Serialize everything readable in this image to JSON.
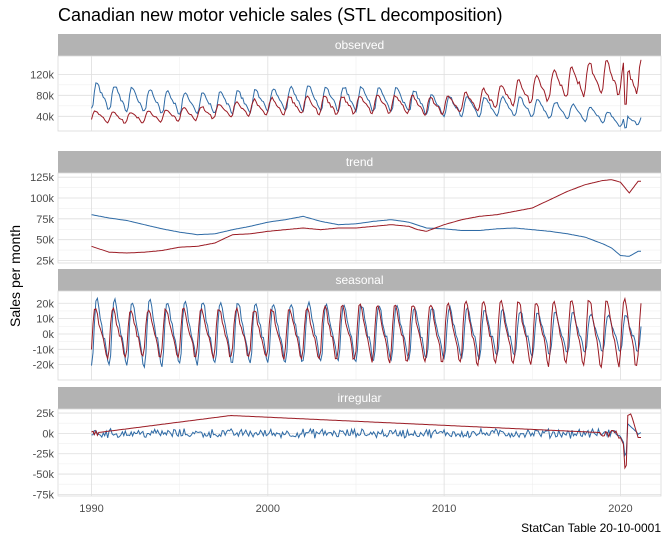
{
  "chart_data": {
    "type": "line",
    "title": "Canadian new motor vehicle sales (STL decomposition)",
    "xlabel": "",
    "ylabel": "Sales per month",
    "caption": "StatCan Table 20-10-0001",
    "x_range": [
      1990,
      2021.2
    ],
    "x_ticks": [
      "1990",
      "2000",
      "2010",
      "2020"
    ],
    "grid": true,
    "colors": {
      "series_a": "#2e6aa5",
      "series_b": "#9b1b24"
    },
    "panels": [
      {
        "name": "observed",
        "ylim": [
          12000,
          155000
        ],
        "y_ticks": [
          40000,
          80000,
          120000
        ],
        "y_tick_labels": [
          "40k",
          "80k",
          "120k"
        ],
        "series": [
          {
            "x": [
              1990,
              1992,
              1994,
              1996,
              1998,
              2000,
              2002,
              2004,
              2006,
              2008,
              2009,
              2010,
              2012,
              2014,
              2016,
              2018,
              2019,
              2020,
              2021
            ],
            "values": [
              78000,
              72000,
              67000,
              64000,
              66000,
              70000,
              74000,
              73000,
              72000,
              70000,
              62000,
              58000,
              58000,
              58000,
              52000,
              45000,
              40000,
              30000,
              35000
            ]
          },
          {
            "x": [
              1990,
              1992,
              1994,
              1996,
              1998,
              2000,
              2002,
              2004,
              2006,
              2008,
              2009,
              2010,
              2012,
              2014,
              2016,
              2018,
              2019,
              2020,
              2021
            ],
            "values": [
              40000,
              37000,
              40000,
              45000,
              52000,
              58000,
              61000,
              60000,
              63000,
              62000,
              58000,
              60000,
              70000,
              82000,
              96000,
              110000,
              115000,
              110000,
              120000
            ]
          }
        ]
      },
      {
        "name": "trend",
        "ylim": [
          22000,
          130000
        ],
        "y_ticks": [
          25000,
          50000,
          75000,
          100000,
          125000
        ],
        "y_tick_labels": [
          "25k",
          "50k",
          "75k",
          "100k",
          "125k"
        ],
        "series": [
          {
            "x": [
              1990,
              1991,
              1992,
              1993,
              1994,
              1995,
              1996,
              1997,
              1998,
              1999,
              2000,
              2001,
              2002,
              2003,
              2004,
              2005,
              2006,
              2007,
              2008,
              2009,
              2010,
              2011,
              2012,
              2013,
              2014,
              2015,
              2016,
              2017,
              2018,
              2019,
              2019.5,
              2020,
              2020.5,
              2021
            ],
            "values": [
              80000,
              76000,
              73000,
              68000,
              63000,
              59000,
              56000,
              57000,
              62000,
              66000,
              71000,
              74000,
              78000,
              72000,
              68000,
              69000,
              72000,
              74000,
              71000,
              64000,
              63000,
              61000,
              61000,
              63000,
              64000,
              62000,
              60000,
              57000,
              53000,
              45000,
              40000,
              31000,
              30000,
              36000
            ]
          },
          {
            "x": [
              1990,
              1991,
              1992,
              1993,
              1994,
              1995,
              1996,
              1997,
              1998,
              1999,
              2000,
              2001,
              2002,
              2003,
              2004,
              2005,
              2006,
              2007,
              2008,
              2008.5,
              2009,
              2010,
              2011,
              2012,
              2013,
              2014,
              2015,
              2016,
              2017,
              2018,
              2019,
              2019.5,
              2020,
              2020.5,
              2021
            ],
            "values": [
              42000,
              35000,
              34000,
              35000,
              37000,
              41000,
              42000,
              46000,
              56000,
              57000,
              60000,
              62000,
              64000,
              62000,
              64000,
              64000,
              66000,
              68000,
              66000,
              62000,
              60000,
              68000,
              74000,
              78000,
              80000,
              84000,
              88000,
              98000,
              108000,
              116000,
              121000,
              122000,
              119000,
              106000,
              120000
            ]
          }
        ]
      },
      {
        "name": "seasonal",
        "ylim": [
          -30000,
          28000
        ],
        "y_ticks": [
          -20000,
          -10000,
          0,
          10000,
          20000
        ],
        "y_tick_labels": [
          "-20k",
          "-10k",
          "0k",
          "10k",
          "20k"
        ],
        "series": [
          {
            "x": [
              1990,
              2000,
              2010,
              2020,
              2021
            ],
            "amplitude": [
              22000,
              20000,
              17000,
              12000,
              12000
            ]
          },
          {
            "x": [
              1990,
              2000,
              2010,
              2020,
              2021
            ],
            "amplitude": [
              16000,
              16000,
              20000,
              22000,
              22000
            ]
          }
        ]
      },
      {
        "name": "irregular",
        "ylim": [
          -77000,
          30000
        ],
        "y_ticks": [
          -75000,
          -50000,
          -25000,
          0,
          25000
        ],
        "y_tick_labels": [
          "-75k",
          "-50k",
          "-25k",
          "0k",
          "25k"
        ],
        "series": [
          {
            "x": [
              1990,
              2019.9,
              2020.2,
              2020.3,
              2020.4,
              2021
            ],
            "values": [
              0,
              0,
              -12000,
              -42000,
              12000,
              0
            ]
          },
          {
            "x": [
              1990,
              1997.9,
              2019.9,
              2020.2,
              2020.3,
              2020.4,
              2020.6,
              2021
            ],
            "values": [
              0,
              22000,
              0,
              -15000,
              -70000,
              22000,
              24000,
              -5000
            ]
          }
        ]
      }
    ]
  }
}
